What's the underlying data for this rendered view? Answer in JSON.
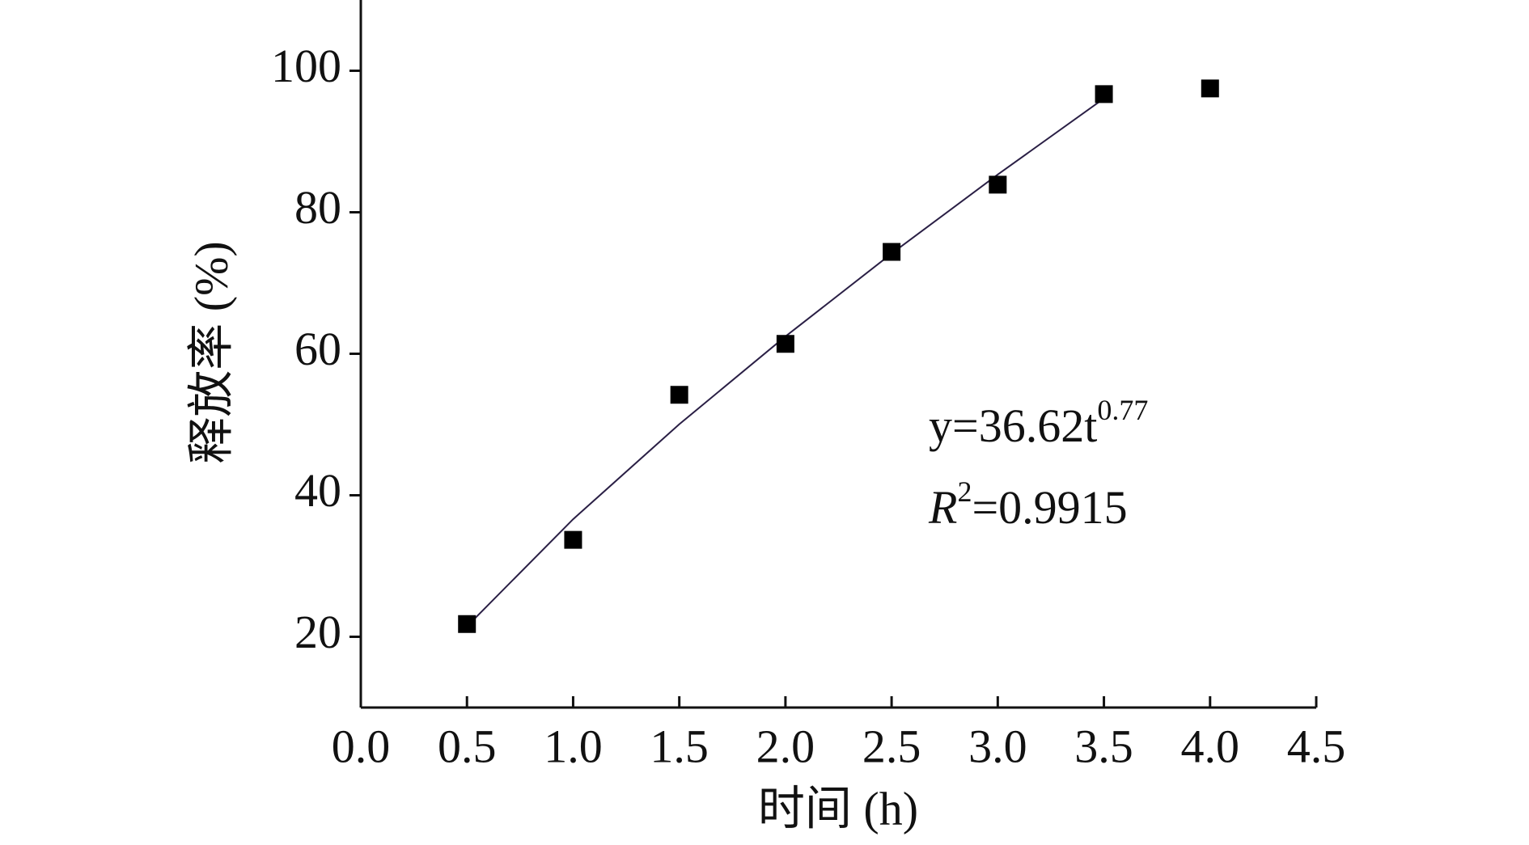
{
  "chart_data": {
    "type": "scatter",
    "x_label": "时间 (h)",
    "y_label": "释放率 (%)",
    "x": [
      0.5,
      1.0,
      1.5,
      2.0,
      2.5,
      3.0,
      3.5,
      4.0
    ],
    "series": [
      {
        "color": "#000000",
        "values": [
          21.8,
          33.7,
          54.2,
          61.4,
          74.4,
          83.9,
          96.7,
          97.5
        ]
      }
    ],
    "fit": {
      "color": "#2a1f45",
      "x": [
        0.5,
        1.0,
        1.5,
        2.0,
        2.5,
        3.0,
        3.5
      ],
      "values": [
        21.47,
        36.62,
        50.04,
        62.45,
        74.16,
        85.33,
        96.08
      ]
    },
    "annotations": {
      "equation": "y=36.62t",
      "exponent": "0.77",
      "r": "R",
      "r_power": "2",
      "r_value": "=0.9915"
    },
    "xlim": [
      0,
      4.5
    ],
    "xticks": [
      {
        "value": 0,
        "label": "0.0"
      },
      {
        "value": 0.5,
        "label": "0.5"
      },
      {
        "value": 1,
        "label": "1.0"
      },
      {
        "value": 1.5,
        "label": "1.5"
      },
      {
        "value": 2,
        "label": "2.0"
      },
      {
        "value": 2.5,
        "label": "2.5"
      },
      {
        "value": 3,
        "label": "3.0"
      },
      {
        "value": 3.5,
        "label": "3.5"
      },
      {
        "value": 4,
        "label": "4.0"
      },
      {
        "value": 4.5,
        "label": "4.5"
      }
    ],
    "ylim": [
      10,
      110
    ],
    "yticks": [
      20,
      40,
      60,
      80,
      100
    ]
  }
}
